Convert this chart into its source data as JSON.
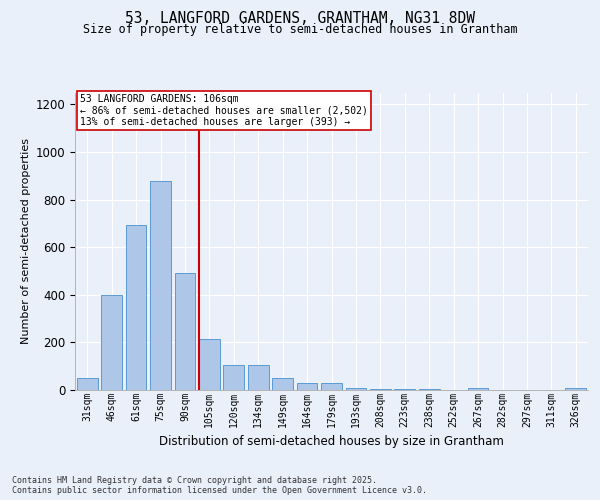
{
  "title_line1": "53, LANGFORD GARDENS, GRANTHAM, NG31 8DW",
  "title_line2": "Size of property relative to semi-detached houses in Grantham",
  "xlabel": "Distribution of semi-detached houses by size in Grantham",
  "ylabel": "Number of semi-detached properties",
  "categories": [
    "31sqm",
    "46sqm",
    "61sqm",
    "75sqm",
    "90sqm",
    "105sqm",
    "120sqm",
    "134sqm",
    "149sqm",
    "164sqm",
    "179sqm",
    "193sqm",
    "208sqm",
    "223sqm",
    "238sqm",
    "252sqm",
    "267sqm",
    "282sqm",
    "297sqm",
    "311sqm",
    "326sqm"
  ],
  "values": [
    50,
    400,
    695,
    880,
    490,
    215,
    105,
    105,
    50,
    30,
    28,
    10,
    5,
    5,
    3,
    2,
    10,
    2,
    0,
    0,
    10
  ],
  "bar_color": "#aec6e8",
  "bar_edge_color": "#5b9bd5",
  "vline_index": 5,
  "vline_color": "#cc0000",
  "annotation_title": "53 LANGFORD GARDENS: 106sqm",
  "annotation_line2": "← 86% of semi-detached houses are smaller (2,502)",
  "annotation_line3": "13% of semi-detached houses are larger (393) →",
  "annotation_box_color": "#cc0000",
  "ylim": [
    0,
    1250
  ],
  "yticks": [
    0,
    200,
    400,
    600,
    800,
    1000,
    1200
  ],
  "footer_line1": "Contains HM Land Registry data © Crown copyright and database right 2025.",
  "footer_line2": "Contains public sector information licensed under the Open Government Licence v3.0.",
  "bg_color": "#eaf0fa",
  "plot_bg_color": "#eaf0fa"
}
